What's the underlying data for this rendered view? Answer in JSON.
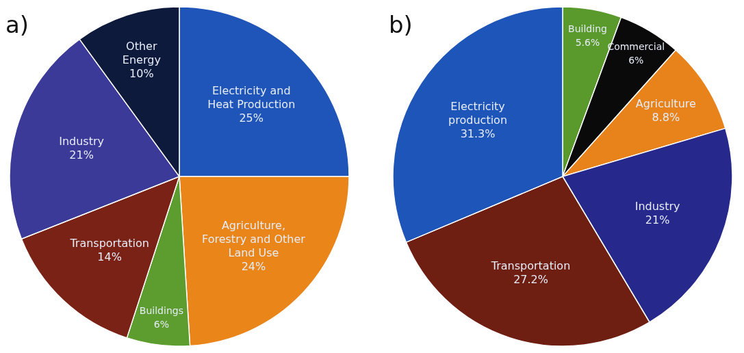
{
  "chart_data": [
    {
      "type": "pie",
      "title": "a)",
      "categories": [
        "Electricity and Heat Production",
        "Agriculture, Forestry and Other Land Use",
        "Buildings",
        "Transportation",
        "Industry",
        "Other Energy"
      ],
      "values": [
        25,
        24,
        6,
        14,
        21,
        10
      ],
      "value_labels": [
        "25%",
        "24%",
        "6%",
        "14%",
        "21%",
        "10%"
      ],
      "colors": [
        "#1f55b8",
        "#e98519",
        "#5d9c2e",
        "#7b2216",
        "#3b3a98",
        "#0e1a3c"
      ]
    },
    {
      "type": "pie",
      "title": "b)",
      "categories": [
        "Building",
        "Commercial",
        "Agriculture",
        "Industry",
        "Transportation",
        "Electricity production"
      ],
      "values": [
        5.6,
        6,
        8.8,
        21,
        27.2,
        31.3
      ],
      "value_labels": [
        "5.6%",
        "6%",
        "8.8%",
        "21%",
        "27.2%",
        "31.3%"
      ],
      "colors": [
        "#5a9a2c",
        "#0a0a0a",
        "#e8821a",
        "#26288c",
        "#6f1e12",
        "#1e55b8"
      ]
    }
  ]
}
